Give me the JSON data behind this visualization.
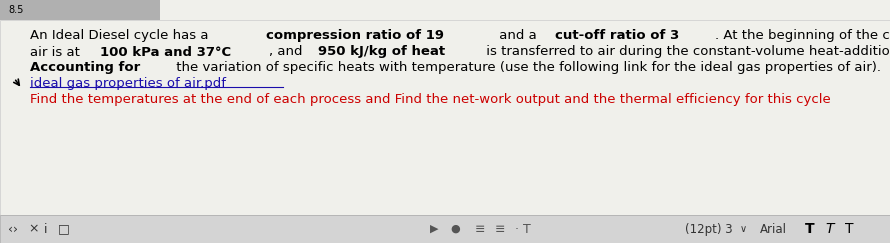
{
  "background_color": "#f0f0eb",
  "header_bg": "#b0b0b0",
  "header_text": "8.5",
  "line1_segments": [
    {
      "text": "An Ideal Diesel cycle has a ",
      "bold": false,
      "color": "#000000"
    },
    {
      "text": "compression ratio of 19",
      "bold": true,
      "color": "#000000"
    },
    {
      "text": " and a ",
      "bold": false,
      "color": "#000000"
    },
    {
      "text": "cut-off ratio of 3",
      "bold": true,
      "color": "#000000"
    },
    {
      "text": ". At the beginning of the compression process,",
      "bold": false,
      "color": "#000000"
    }
  ],
  "line2_segments": [
    {
      "text": "air is at ",
      "bold": false,
      "color": "#000000"
    },
    {
      "text": "100 kPa and 37°C",
      "bold": true,
      "color": "#000000"
    },
    {
      "text": ", and ",
      "bold": false,
      "color": "#000000"
    },
    {
      "text": "950 kJ/kg of heat",
      "bold": true,
      "color": "#000000"
    },
    {
      "text": " is transferred to air during the constant-volume heat-addition process.",
      "bold": false,
      "color": "#000000"
    }
  ],
  "line3_segments": [
    {
      "text": "Accounting for",
      "bold": true,
      "color": "#000000"
    },
    {
      "text": " the variation of specific heats with temperature (use the following link for the ideal gas properties of air).",
      "bold": false,
      "color": "#000000"
    }
  ],
  "line4_text": "ideal gas properties of air.pdf",
  "line4_color": "#1a0dab",
  "line5_text": "Find the temperatures at the end of each process and Find the net-work output and the thermal efficiency for this cycle",
  "line5_color": "#cc0000",
  "font_size_main": 9.5,
  "font_size_toolbar": 8.5,
  "figsize": [
    8.9,
    2.43
  ],
  "dpi": 100
}
